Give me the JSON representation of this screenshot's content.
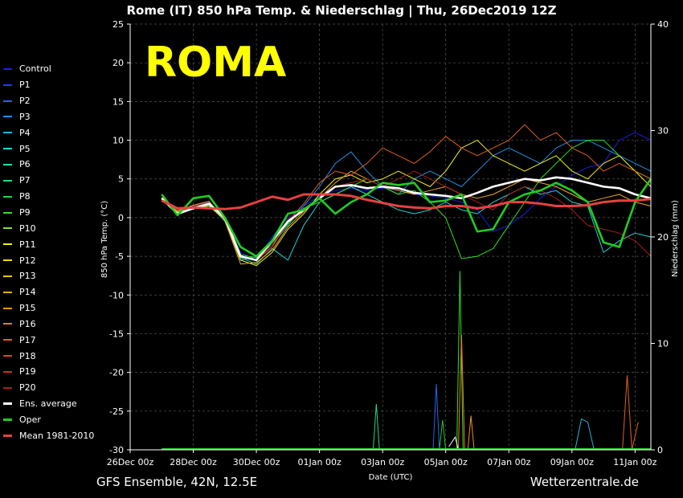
{
  "title": "Rome  (IT)  850 hPa Temp. & Niederschlag | Thu, 26Dec2019 12Z",
  "watermark": "ROMA",
  "footer_left": "GFS Ensemble, 42N, 12.5E",
  "footer_right": "Wetterzentrale.de",
  "chart_data": {
    "type": "line",
    "xlabel": "Date (UTC)",
    "ylabel": "850 hPa Temp. (°C)",
    "y2label": "Niederschlag (mm)",
    "x_ticks": [
      "26Dec 00z",
      "28Dec 00z",
      "30Dec 00z",
      "01Jan 00z",
      "03Jan 00z",
      "05Jan 00z",
      "07Jan 00z",
      "09Jan 00z",
      "11Jan 00z"
    ],
    "xlim": [
      0,
      16.5
    ],
    "ylim": [
      -30,
      25
    ],
    "y_ticks": [
      25,
      20,
      15,
      10,
      5,
      0,
      -5,
      -10,
      -15,
      -20,
      -25,
      -30
    ],
    "y2lim": [
      0,
      40
    ],
    "y2_ticks": [
      40,
      30,
      20,
      10,
      0
    ],
    "grid": true,
    "legend_position": "left",
    "legend": [
      {
        "name": "Control",
        "color": "#1c1ce6"
      },
      {
        "name": "P1",
        "color": "#1f3cf0"
      },
      {
        "name": "P2",
        "color": "#1f66ee"
      },
      {
        "name": "P3",
        "color": "#2190e6"
      },
      {
        "name": "P4",
        "color": "#22b2e0"
      },
      {
        "name": "P5",
        "color": "#22d4d4"
      },
      {
        "name": "P6",
        "color": "#22e0a8"
      },
      {
        "name": "P7",
        "color": "#22dc80"
      },
      {
        "name": "P8",
        "color": "#22d64c"
      },
      {
        "name": "P9",
        "color": "#33e020"
      },
      {
        "name": "P10",
        "color": "#8ae020"
      },
      {
        "name": "P11",
        "color": "#f0f020"
      },
      {
        "name": "P12",
        "color": "#f0d820"
      },
      {
        "name": "P13",
        "color": "#f0c020"
      },
      {
        "name": "P14",
        "color": "#f0a820"
      },
      {
        "name": "P15",
        "color": "#f09020"
      },
      {
        "name": "P16",
        "color": "#ec7822"
      },
      {
        "name": "P17",
        "color": "#e06022"
      },
      {
        "name": "P18",
        "color": "#d44a22"
      },
      {
        "name": "P19",
        "color": "#c03620"
      },
      {
        "name": "P20",
        "color": "#a82018"
      },
      {
        "name": "Ens. average",
        "color": "#ffffff"
      },
      {
        "name": "Oper",
        "color": "#22cc22"
      },
      {
        "name": "Mean 1981-2010",
        "color": "#e84040"
      }
    ],
    "series": [
      {
        "key": "ens_average",
        "color": "#ffffff",
        "x": [
          1,
          1.5,
          2,
          2.5,
          3,
          3.5,
          4,
          4.5,
          5,
          5.5,
          6,
          6.5,
          7,
          7.5,
          8,
          8.5,
          9,
          9.5,
          10,
          10.5,
          11,
          11.5,
          12,
          12.5,
          13,
          13.5,
          14,
          14.5,
          15,
          15.5,
          16,
          16.5
        ],
        "values": [
          2.5,
          0.5,
          1.2,
          1.8,
          0,
          -5,
          -5.5,
          -3,
          -0.5,
          1,
          2.5,
          4,
          4.2,
          3.8,
          4,
          3.8,
          3.2,
          3,
          2.8,
          2.5,
          3.2,
          4,
          4.5,
          5,
          4.8,
          5.2,
          5,
          4.5,
          4,
          3.8,
          3,
          2.5
        ]
      },
      {
        "key": "oper",
        "color": "#22cc22",
        "x": [
          1,
          1.5,
          2,
          2.5,
          3,
          3.5,
          4,
          4.5,
          5,
          5.5,
          6,
          6.5,
          7,
          7.5,
          8,
          8.5,
          9,
          9.5,
          10,
          10.5,
          11,
          11.5,
          12,
          12.5,
          13,
          13.5,
          14,
          14.5,
          15,
          15.5,
          16,
          16.5
        ],
        "values": [
          3,
          0.3,
          2.5,
          2.8,
          0,
          -3.8,
          -5,
          -3,
          0.5,
          1,
          2.5,
          0.5,
          2,
          3,
          4.5,
          4.2,
          4.5,
          2,
          2.2,
          3,
          -1.8,
          -1.5,
          2,
          3,
          3.5,
          4.5,
          3.5,
          2,
          -3.2,
          -3.8,
          2,
          5
        ]
      },
      {
        "key": "mean_1981_2010",
        "color": "#e84040",
        "x": [
          1,
          1.5,
          2,
          2.5,
          3,
          3.5,
          4,
          4.5,
          5,
          5.5,
          6,
          6.5,
          7,
          7.5,
          8,
          8.5,
          9,
          9.5,
          10,
          10.5,
          11,
          11.5,
          12,
          12.5,
          13,
          13.5,
          14,
          14.5,
          15,
          15.5,
          16,
          16.5
        ],
        "values": [
          2.2,
          1.2,
          1.3,
          1.2,
          1.1,
          1.3,
          2,
          2.7,
          2.3,
          3,
          3,
          3,
          2.8,
          2.3,
          1.9,
          1.5,
          1.3,
          1.2,
          1.5,
          1.5,
          1.2,
          1.5,
          2,
          2,
          1.8,
          1.5,
          1.5,
          1.6,
          2,
          2.2,
          2.2,
          2.4
        ]
      },
      {
        "key": "control",
        "color": "#1c1ce6",
        "x": [
          1,
          1.5,
          2,
          2.5,
          3,
          3.5,
          4,
          4.5,
          5,
          5.5,
          6,
          6.5,
          7,
          7.5,
          8,
          8.5,
          9,
          9.5,
          10,
          10.5,
          11,
          11.5,
          12,
          12.5,
          13,
          13.5,
          14,
          14.5,
          15,
          15.5,
          16,
          16.5
        ],
        "values": [
          2.8,
          0.8,
          1.5,
          2,
          0,
          -4.5,
          -5.5,
          -2.5,
          0,
          1.5,
          2.8,
          3.5,
          3.8,
          3.5,
          3.8,
          3.5,
          3,
          2.8,
          2.5,
          2,
          1,
          -1.8,
          -1,
          0.5,
          2.5,
          4,
          5.5,
          6.5,
          7,
          10,
          11,
          10
        ]
      },
      {
        "key": "p3",
        "color": "#2190e6",
        "x": [
          1,
          1.5,
          2,
          2.5,
          3,
          3.5,
          4,
          4.5,
          5,
          5.5,
          6,
          6.5,
          7,
          7.5,
          8,
          8.5,
          9,
          9.5,
          10,
          10.5,
          11,
          11.5,
          12,
          12.5,
          13,
          13.5,
          14,
          14.5,
          15,
          15.5,
          16,
          16.5
        ],
        "values": [
          2.5,
          0.6,
          1.4,
          1.7,
          -0.5,
          -5.5,
          -5,
          -3.5,
          -1,
          1.5,
          4,
          7,
          8.5,
          6,
          4,
          3,
          5,
          6,
          5,
          4,
          6,
          8,
          9,
          8,
          7,
          9,
          10,
          10,
          9,
          8,
          7,
          6
        ]
      },
      {
        "key": "p5",
        "color": "#22d4d4",
        "x": [
          1,
          1.5,
          2,
          2.5,
          3,
          3.5,
          4,
          4.5,
          5,
          5.5,
          6,
          6.5,
          7,
          7.5,
          8,
          8.5,
          9,
          9.5,
          10,
          10.5,
          11,
          11.5,
          12,
          12.5,
          13,
          13.5,
          14,
          14.5,
          15,
          15.5,
          16,
          16.5
        ],
        "values": [
          2.4,
          0.4,
          1.1,
          1.6,
          -0.2,
          -5.2,
          -6,
          -4,
          -5.5,
          -1,
          2,
          3,
          4,
          3,
          2,
          1,
          0.5,
          1,
          2,
          1,
          0.5,
          2,
          3,
          4,
          3,
          3.5,
          2,
          1.5,
          -4.5,
          -3,
          -2,
          -2.5
        ]
      },
      {
        "key": "p9",
        "color": "#33e020",
        "x": [
          1,
          1.5,
          2,
          2.5,
          3,
          3.5,
          4,
          4.5,
          5,
          5.5,
          6,
          6.5,
          7,
          7.5,
          8,
          8.5,
          9,
          9.5,
          10,
          10.5,
          11,
          11.5,
          12,
          12.5,
          13,
          13.5,
          14,
          14.5,
          15,
          15.5,
          16,
          16.5
        ],
        "values": [
          2.6,
          0.5,
          1.3,
          1.9,
          0,
          -4.8,
          -5.2,
          -3.2,
          -0.8,
          1.2,
          2,
          3,
          4,
          5,
          4,
          3,
          3.5,
          2,
          0,
          -5.3,
          -5,
          -4,
          -1,
          2,
          5,
          7,
          9,
          10,
          10,
          8,
          6,
          5
        ]
      },
      {
        "key": "p11",
        "color": "#f0f020",
        "x": [
          1,
          1.5,
          2,
          2.5,
          3,
          3.5,
          4,
          4.5,
          5,
          5.5,
          6,
          6.5,
          7,
          7.5,
          8,
          8.5,
          9,
          9.5,
          10,
          10.5,
          11,
          11.5,
          12,
          12.5,
          13,
          13.5,
          14,
          14.5,
          15,
          15.5,
          16,
          16.5
        ],
        "values": [
          2.3,
          0.7,
          1.2,
          1.5,
          -0.3,
          -5.5,
          -6.2,
          -4.5,
          -1.5,
          0.5,
          3,
          5,
          5.5,
          4.5,
          5,
          6,
          5,
          4,
          6,
          9,
          10,
          8,
          7,
          6,
          7,
          8,
          6,
          5,
          7,
          8,
          6,
          4
        ]
      },
      {
        "key": "p14",
        "color": "#f0a820",
        "x": [
          1,
          1.5,
          2,
          2.5,
          3,
          3.5,
          4,
          4.5,
          5,
          5.5,
          6,
          6.5,
          7,
          7.5,
          8,
          8.5,
          9,
          9.5,
          10,
          10.5,
          11,
          11.5,
          12,
          12.5,
          13,
          13.5,
          14,
          14.5,
          15,
          15.5,
          16,
          16.5
        ],
        "values": [
          2.2,
          0.9,
          1.6,
          2.1,
          -0.4,
          -6,
          -5.8,
          -4.2,
          -1.2,
          0.8,
          2.5,
          4.5,
          6,
          5,
          4,
          3.5,
          3,
          3.5,
          4,
          3,
          2.5,
          3,
          4,
          5,
          4.5,
          4,
          3,
          2,
          2.5,
          3,
          2,
          1.5
        ]
      },
      {
        "key": "p17",
        "color": "#e06022",
        "x": [
          1,
          1.5,
          2,
          2.5,
          3,
          3.5,
          4,
          4.5,
          5,
          5.5,
          6,
          6.5,
          7,
          7.5,
          8,
          8.5,
          9,
          9.5,
          10,
          10.5,
          11,
          11.5,
          12,
          12.5,
          13,
          13.5,
          14,
          14.5,
          15,
          15.5,
          16,
          16.5
        ],
        "values": [
          2.5,
          0.8,
          1.3,
          1.8,
          -0.1,
          -5,
          -5.5,
          -3.8,
          -0.5,
          1.8,
          4.5,
          6,
          5.5,
          7,
          9,
          8,
          7,
          8.5,
          10.5,
          9,
          8,
          9,
          10,
          12,
          10,
          11,
          9,
          8,
          6,
          7,
          6,
          5
        ]
      },
      {
        "key": "p20",
        "color": "#a82018",
        "x": [
          1,
          1.5,
          2,
          2.5,
          3,
          3.5,
          4,
          4.5,
          5,
          5.5,
          6,
          6.5,
          7,
          7.5,
          8,
          8.5,
          9,
          9.5,
          10,
          10.5,
          11,
          11.5,
          12,
          12.5,
          13,
          13.5,
          14,
          14.5,
          15,
          15.5,
          16,
          16.5
        ],
        "values": [
          2.4,
          0.5,
          1.5,
          1.9,
          0.1,
          -4.9,
          -5.6,
          -3.5,
          -0.2,
          1,
          2.5,
          4,
          4.5,
          5,
          4,
          5,
          6,
          5,
          4,
          3,
          2,
          1,
          3,
          4,
          3.5,
          2.5,
          1,
          -1,
          -1.5,
          -2,
          -3,
          -5
        ]
      }
    ],
    "precipitation": [
      {
        "key": "oper",
        "color": "#22cc22",
        "x": [
          9.8,
          9.9,
          10.0,
          10.1
        ],
        "values": [
          0,
          2.8,
          0,
          0
        ]
      },
      {
        "key": "p9",
        "color": "#33e020",
        "x": [
          10.35,
          10.45,
          10.55,
          10.65
        ],
        "values": [
          0,
          16.8,
          0,
          0
        ]
      },
      {
        "key": "p7",
        "color": "#22dc80",
        "x": [
          7.7,
          7.8,
          7.9,
          8.0
        ],
        "values": [
          0,
          4.3,
          0,
          0
        ]
      },
      {
        "key": "p2",
        "color": "#1f66ee",
        "x": [
          9.6,
          9.7,
          9.8,
          9.9
        ],
        "values": [
          0,
          6.2,
          0,
          0
        ]
      },
      {
        "key": "p16",
        "color": "#ec7822",
        "x": [
          10.4,
          10.5,
          10.6,
          10.7
        ],
        "values": [
          0,
          10.8,
          0,
          0
        ]
      },
      {
        "key": "p15",
        "color": "#f09020",
        "x": [
          10.7,
          10.8,
          10.9,
          11.0
        ],
        "values": [
          0,
          3.2,
          0,
          0
        ]
      },
      {
        "key": "p4",
        "color": "#22b2e0",
        "x": [
          14.1,
          14.3,
          14.5,
          14.7
        ],
        "values": [
          0,
          2.9,
          2.6,
          0
        ]
      },
      {
        "key": "p17",
        "color": "#e06022",
        "x": [
          15.6,
          15.75,
          15.9,
          16.1
        ],
        "values": [
          0,
          7.0,
          0,
          2.6
        ]
      },
      {
        "key": "ens_average",
        "color": "#ffffff",
        "x": [
          10.1,
          10.3,
          10.4,
          10.5
        ],
        "values": [
          0.3,
          1.2,
          0,
          0
        ]
      }
    ]
  }
}
